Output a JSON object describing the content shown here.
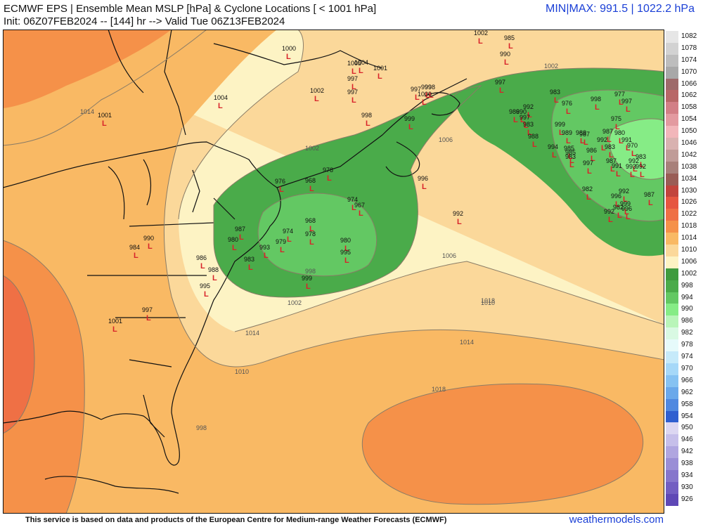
{
  "header": {
    "title_line1": "ECMWF EPS | Ensemble Mean MSLP [hPa] & Cyclone Locations [ < 1001 hPa]",
    "title_line2": "Init: 06Z07FEB2024 -- [144] hr --> Valid Tue 06Z13FEB2024",
    "minmax": "MIN|MAX: 991.5 | 1022.2 hPa"
  },
  "footer": {
    "credit": "This service is based on data and products of the European Centre for Medium-range Weather Forecasts (ECMWF)",
    "site": "weathermodels.com"
  },
  "colors": {
    "ocean_light": "#fdf3c4",
    "green_1002": "#5bbd5b",
    "green_998": "#4aab4a",
    "green_994": "#63c863",
    "green_990": "#86ec86",
    "orange_1010": "#fbd89a",
    "orange_1014": "#f9b964",
    "orange_1018": "#f59149",
    "orange_1022": "#ef7045",
    "cyclone_marker": "#d8232a"
  },
  "contour_labels": [
    "1002",
    "1006",
    "1010",
    "1014",
    "1018",
    "998",
    "1014",
    "1018",
    "1006",
    "1010",
    "1002",
    "1014",
    "1002",
    "998"
  ],
  "cyclones": [
    "1002",
    "985",
    "990",
    "1000",
    "1001",
    "1004",
    "1001",
    "1005",
    "997",
    "999",
    "1002",
    "997",
    "998",
    "999",
    "998",
    "1004",
    "997",
    "1000",
    "997",
    "990",
    "983",
    "976",
    "986",
    "992",
    "997",
    "983",
    "988",
    "999",
    "989",
    "988",
    "987",
    "975",
    "997",
    "994",
    "985",
    "983",
    "986",
    "992",
    "987",
    "983",
    "997",
    "987",
    "992",
    "998",
    "977",
    "991",
    "980",
    "970",
    "991",
    "983",
    "993",
    "992",
    "992",
    "982",
    "996",
    "999",
    "974",
    "985",
    "982",
    "987",
    "967",
    "992",
    "996",
    "968",
    "978",
    "976",
    "968",
    "996",
    "992",
    "980",
    "995",
    "999",
    "979",
    "974",
    "978",
    "993",
    "987",
    "980",
    "983",
    "986",
    "988",
    "995",
    "990",
    "984",
    "1001",
    "997"
  ],
  "colorbar": [
    {
      "label": "1082",
      "color": "#e6e6e6"
    },
    {
      "label": "1078",
      "color": "#d2d2d2"
    },
    {
      "label": "1074",
      "color": "#bdbdbd"
    },
    {
      "label": "1070",
      "color": "#a8a8a8"
    },
    {
      "label": "1066",
      "color": "#9e6a6a"
    },
    {
      "label": "1062",
      "color": "#b86767"
    },
    {
      "label": "1058",
      "color": "#d27f86"
    },
    {
      "label": "1054",
      "color": "#e39aa0"
    },
    {
      "label": "1050",
      "color": "#f2b6ba"
    },
    {
      "label": "1046",
      "color": "#d9b2b0"
    },
    {
      "label": "1042",
      "color": "#c09c98"
    },
    {
      "label": "1038",
      "color": "#a8807a"
    },
    {
      "label": "1034",
      "color": "#9a5c55"
    },
    {
      "label": "1030",
      "color": "#c2443c"
    },
    {
      "label": "1026",
      "color": "#e65640"
    },
    {
      "label": "1022",
      "color": "#ef7045"
    },
    {
      "label": "1018",
      "color": "#f59149"
    },
    {
      "label": "1014",
      "color": "#f9b964"
    },
    {
      "label": "1010",
      "color": "#fbd89a"
    },
    {
      "label": "1006",
      "color": "#fdf3c4"
    },
    {
      "label": "1002",
      "color": "#3f9b3f"
    },
    {
      "label": "998",
      "color": "#4aab4a"
    },
    {
      "label": "994",
      "color": "#63c863"
    },
    {
      "label": "990",
      "color": "#86ec86"
    },
    {
      "label": "986",
      "color": "#b9f5b9"
    },
    {
      "label": "982",
      "color": "#d9f9e3"
    },
    {
      "label": "978",
      "color": "#e6fafb"
    },
    {
      "label": "974",
      "color": "#c6eafa"
    },
    {
      "label": "970",
      "color": "#a6d8f8"
    },
    {
      "label": "966",
      "color": "#86c2f2"
    },
    {
      "label": "962",
      "color": "#6aa8ea"
    },
    {
      "label": "958",
      "color": "#4f88e0"
    },
    {
      "label": "954",
      "color": "#2f5fd0"
    },
    {
      "label": "950",
      "color": "#dcd7f2"
    },
    {
      "label": "946",
      "color": "#c6bfea"
    },
    {
      "label": "942",
      "color": "#b0a6e0"
    },
    {
      "label": "938",
      "color": "#9a8ed6"
    },
    {
      "label": "934",
      "color": "#8676cc"
    },
    {
      "label": "930",
      "color": "#725ec2"
    },
    {
      "label": "926",
      "color": "#5e48b6"
    }
  ]
}
